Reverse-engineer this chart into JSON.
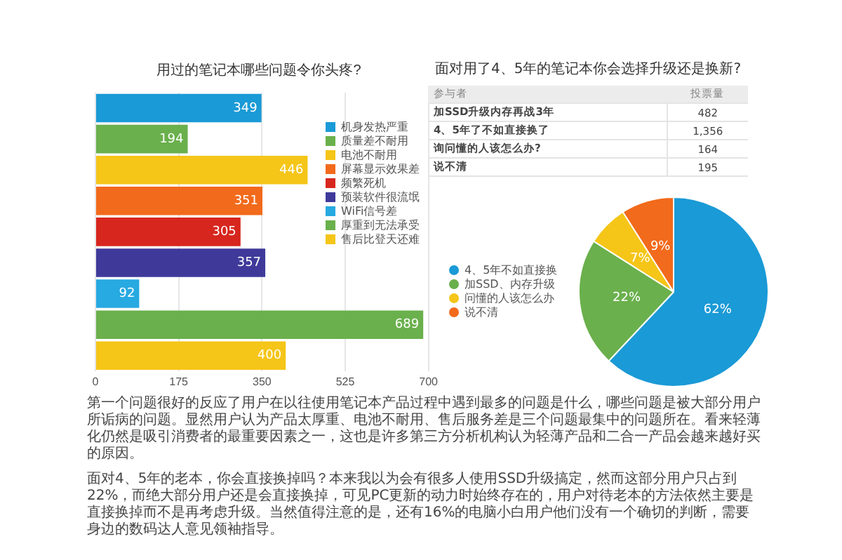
{
  "chart_data": [
    {
      "type": "bar",
      "orientation": "horizontal",
      "title": "用过的笔记本哪些问题令你头疼?",
      "categories": [
        null,
        null,
        null,
        null,
        null,
        null,
        null,
        null,
        null
      ],
      "series": [
        {
          "name": "机身发热严重",
          "color": "#1a9ad6",
          "values": [
            349,
            null,
            null,
            null,
            null,
            null,
            null,
            null,
            null
          ]
        },
        {
          "name": "质量差不耐用",
          "color": "#6ab04c",
          "values": [
            null,
            194,
            null,
            null,
            null,
            null,
            null,
            null,
            null
          ]
        },
        {
          "name": "电池不耐用",
          "color": "#f5c518",
          "values": [
            null,
            null,
            446,
            null,
            null,
            null,
            null,
            null,
            null
          ]
        },
        {
          "name": "屏幕显示效果差",
          "color": "#f26a1b",
          "values": [
            null,
            null,
            null,
            351,
            null,
            null,
            null,
            null,
            null
          ]
        },
        {
          "name": "频繁死机",
          "color": "#d7261e",
          "values": [
            null,
            null,
            null,
            null,
            305,
            null,
            null,
            null,
            null
          ]
        },
        {
          "name": "预装软件很流氓",
          "color": "#3f3a9a",
          "values": [
            null,
            null,
            null,
            null,
            null,
            357,
            null,
            null,
            null
          ]
        },
        {
          "name": "WiFi信号差",
          "color": "#27a9e1",
          "values": [
            null,
            null,
            null,
            null,
            null,
            null,
            92,
            null,
            null
          ]
        },
        {
          "name": "厚重到无法承受",
          "color": "#6ab04c",
          "values": [
            null,
            null,
            null,
            null,
            null,
            null,
            null,
            689,
            null
          ]
        },
        {
          "name": "售后比登天还难",
          "color": "#f5c518",
          "values": [
            null,
            null,
            null,
            null,
            null,
            null,
            null,
            null,
            400
          ]
        }
      ],
      "xlim": [
        0,
        700
      ],
      "xticks": [
        0,
        175,
        350,
        525,
        700
      ],
      "grid": "x",
      "legend": "top right",
      "tick_labels": "x",
      "data_labels": true
    },
    {
      "type": "other",
      "title": "面对用了4、5年的笔记本你会选择升级还是换新?",
      "xlabel": "参与者",
      "ylabel": "投票量",
      "categories": [
        "加SSD升级内存再战3年",
        "4、5年了不如直接换了",
        "询问懂的人该怎么办?",
        "说不清"
      ],
      "value_labels": [
        "482",
        "1,356",
        "164",
        "195"
      ]
    },
    {
      "type": "pie",
      "categories": [
        "4、5年不如直接换",
        "加SSD、内存升级",
        "问懂的人该怎么办",
        "说不清"
      ],
      "values": [
        62,
        22,
        7,
        9
      ],
      "value_labels": [
        "62%",
        "22%",
        "7%",
        "9%"
      ],
      "colors": [
        "#1a9ad6",
        "#6ab04c",
        "#f5c518",
        "#f26a1b"
      ],
      "legend": "left"
    },
    {
      "type": "other",
      "annotations": [
        "第一个问题很好的反应了用户在以往使用笔记本产品过程中遇到最多的问题是什么，哪些问题是被大部分用户所诟病的问题。显然用户认为产品太厚重、电池不耐用、售后服务差是三个问题最集中的问题所在。看来轻薄化仍然是吸引消费者的最重要因素之一，这也是许多第三方分析机构认为轻薄产品和二合一产品会越来越好买的原因。",
        "面对4、5年的老本，你会直接换掉吗？本来我以为会有很多人使用SSD升级搞定，然而这部分用户只占到22%，而绝大部分用户还是会直接换掉，可见PC更新的动力时始终存在的，用户对待老本的方法依然主要是直接换掉而不是再考虑升级。当然值得注意的是，还有16%的电脑小白用户他们没有一个确切的判断，需要身边的数码达人意见领袖指导。"
      ]
    }
  ]
}
